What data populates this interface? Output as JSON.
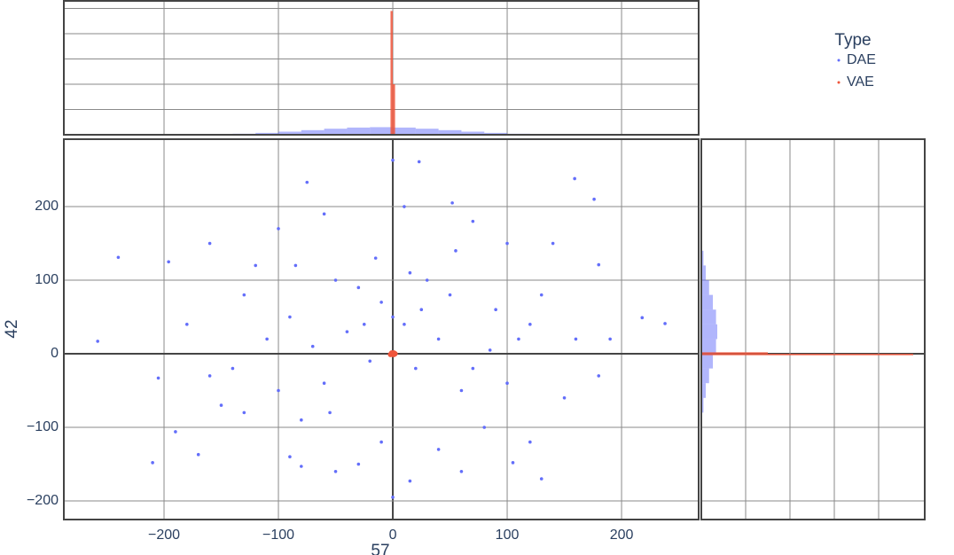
{
  "chart_data": {
    "type": "scatter",
    "xlabel": "57",
    "ylabel": "42",
    "legend_title": "Type",
    "grid": true,
    "xlim": [
      -287.6,
      267.4
    ],
    "ylim": [
      -225.3,
      291.6
    ],
    "xticks": [
      {
        "value": -200,
        "label": "−200"
      },
      {
        "value": -100,
        "label": "−100"
      },
      0,
      100,
      200
    ],
    "yticks": [
      {
        "value": -200,
        "label": "−200"
      },
      {
        "value": -100,
        "label": "−100"
      },
      0,
      100,
      200
    ],
    "series": [
      {
        "name": "DAE",
        "color": "#636efa",
        "x": [
          -240,
          -258,
          -205,
          -210,
          -190,
          -196,
          -170,
          238,
          218,
          180,
          159,
          176,
          -90,
          0,
          23,
          52,
          -75,
          -80,
          -130,
          -150,
          130,
          105,
          60,
          -50,
          0,
          15,
          -160,
          140,
          120,
          -120,
          190,
          180,
          -180,
          -140,
          150,
          100,
          -100,
          40,
          -30,
          70,
          -60,
          10,
          -10,
          80,
          -80,
          130,
          -130,
          160,
          -160,
          110,
          -110,
          90,
          -90,
          60,
          -60,
          30,
          -30,
          40,
          -40,
          0,
          20,
          -20,
          50,
          -50,
          70,
          -70,
          10,
          -10,
          25,
          -25,
          100,
          -100,
          0,
          15,
          -15,
          55,
          -55,
          85,
          -85,
          120
        ],
        "y": [
          131,
          17,
          -33,
          -148,
          -106,
          125,
          -137,
          41,
          49,
          121,
          238,
          210,
          -140,
          263,
          261,
          205,
          233,
          -153,
          -80,
          -70,
          -170,
          -148,
          -160,
          -160,
          -195,
          -173,
          150,
          150,
          -120,
          120,
          20,
          -30,
          40,
          -20,
          -60,
          150,
          170,
          -130,
          -150,
          180,
          190,
          200,
          -120,
          -100,
          -90,
          80,
          80,
          20,
          -30,
          20,
          20,
          60,
          50,
          -50,
          -40,
          100,
          90,
          20,
          30,
          50,
          -20,
          -10,
          80,
          100,
          -20,
          10,
          40,
          70,
          60,
          40,
          -40,
          -50,
          0,
          110,
          130,
          140,
          -80,
          5,
          120,
          40
        ]
      },
      {
        "name": "VAE",
        "color": "#ef553b",
        "x": [
          -1,
          1,
          0,
          2,
          -2,
          1,
          0,
          -1
        ],
        "y": [
          0,
          1,
          -1,
          0,
          -1,
          -1,
          1,
          1
        ]
      }
    ],
    "x_histogram": {
      "ylim": [
        0,
        5300
      ],
      "yticks": [
        0,
        1000,
        2000,
        3000,
        4000,
        5000
      ],
      "series": [
        {
          "bins": [
            -280,
            -260,
            -240,
            -220,
            -200,
            -180,
            -160,
            -140,
            -120,
            -100,
            -80,
            -60,
            -40,
            -20,
            0,
            20,
            40,
            60,
            80,
            100,
            120,
            140,
            160,
            180,
            200,
            220,
            240,
            260
          ],
          "values": [
            0,
            0,
            0,
            1,
            3,
            8,
            20,
            41,
            75,
            123,
            182,
            240,
            285,
            300,
            285,
            240,
            182,
            123,
            75,
            41,
            20,
            8,
            3,
            1,
            0,
            0,
            0
          ]
        },
        {
          "bins": [
            -2,
            0,
            2
          ],
          "values": [
            4900,
            2000
          ]
        }
      ]
    },
    "y_histogram": {
      "xlim": [
        0,
        5040
      ],
      "xticks": [
        0,
        1000,
        2000,
        3000,
        4000
      ],
      "series": [
        {
          "bins": [
            -220,
            -200,
            -180,
            -160,
            -140,
            -120,
            -100,
            -80,
            -60,
            -40,
            -20,
            0,
            20,
            40,
            60,
            80,
            100,
            120,
            140,
            160,
            180,
            200,
            220,
            240,
            260,
            280
          ],
          "values": [
            0,
            0,
            0,
            1,
            2,
            7,
            20,
            49,
            100,
            175,
            261,
            332,
            360,
            332,
            261,
            175,
            100,
            49,
            20,
            7,
            2,
            1,
            0,
            0,
            0
          ]
        },
        {
          "bins": [
            -2,
            0,
            2
          ],
          "values": [
            4780,
            1500
          ]
        }
      ]
    }
  }
}
